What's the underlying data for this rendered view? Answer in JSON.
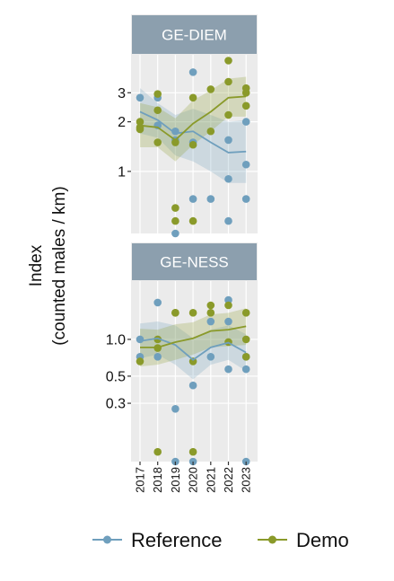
{
  "chart_data": {
    "type": "line",
    "ylabel_lines": [
      "Index",
      "(counted males / km)"
    ],
    "x": [
      "2017",
      "2018",
      "2019",
      "2020",
      "2021",
      "2022",
      "2023"
    ],
    "colors": {
      "Reference": "#6f9fbd",
      "Demo": "#8a9a2a",
      "panel_bg": "#ebebeb",
      "strip_bg": "#8c9fae"
    },
    "legend": {
      "position": "bottom",
      "entries": [
        "Reference",
        "Demo"
      ]
    },
    "panels": [
      {
        "title": "GE-DIEM",
        "yscale": "log",
        "ylim": [
          0.42,
          5.1
        ],
        "yticks": [
          1,
          2,
          3
        ],
        "ytick_labels": [
          "1",
          "2",
          "3"
        ],
        "series": [
          {
            "name": "Reference",
            "points": [
              {
                "x": "2017",
                "y": 2.8
              },
              {
                "x": "2018",
                "y": 2.8
              },
              {
                "x": "2018",
                "y": 1.9
              },
              {
                "x": "2019",
                "y": 1.75
              },
              {
                "x": "2019",
                "y": 1.55
              },
              {
                "x": "2019",
                "y": 0.42
              },
              {
                "x": "2020",
                "y": 4.0
              },
              {
                "x": "2020",
                "y": 1.5
              },
              {
                "x": "2020",
                "y": 0.68
              },
              {
                "x": "2021",
                "y": 0.68
              },
              {
                "x": "2022",
                "y": 1.55
              },
              {
                "x": "2022",
                "y": 0.9
              },
              {
                "x": "2022",
                "y": 0.5
              },
              {
                "x": "2023",
                "y": 2.0
              },
              {
                "x": "2023",
                "y": 1.1
              },
              {
                "x": "2023",
                "y": 0.68
              }
            ],
            "trend": [
              2.3,
              2.05,
              1.7,
              1.75,
              1.5,
              1.3,
              1.32
            ],
            "ci_low": [
              1.7,
              1.6,
              1.25,
              1.15,
              1.0,
              0.85,
              0.85
            ],
            "ci_high": [
              3.2,
              2.6,
              2.2,
              2.4,
              2.2,
              2.0,
              2.05
            ]
          },
          {
            "name": "Demo",
            "points": [
              {
                "x": "2017",
                "y": 2.0
              },
              {
                "x": "2017",
                "y": 1.85
              },
              {
                "x": "2017",
                "y": 1.8
              },
              {
                "x": "2018",
                "y": 2.95
              },
              {
                "x": "2018",
                "y": 2.35
              },
              {
                "x": "2018",
                "y": 1.5
              },
              {
                "x": "2019",
                "y": 0.6
              },
              {
                "x": "2019",
                "y": 0.5
              },
              {
                "x": "2019",
                "y": 1.5
              },
              {
                "x": "2020",
                "y": 2.8
              },
              {
                "x": "2020",
                "y": 1.45
              },
              {
                "x": "2020",
                "y": 0.5
              },
              {
                "x": "2021",
                "y": 3.15
              },
              {
                "x": "2021",
                "y": 1.75
              },
              {
                "x": "2022",
                "y": 4.7
              },
              {
                "x": "2022",
                "y": 3.5
              },
              {
                "x": "2022",
                "y": 2.2
              },
              {
                "x": "2023",
                "y": 3.2
              },
              {
                "x": "2023",
                "y": 3.0
              },
              {
                "x": "2023",
                "y": 2.5
              }
            ],
            "trend": [
              1.9,
              1.85,
              1.55,
              1.95,
              2.3,
              2.8,
              2.85
            ],
            "ci_low": [
              1.4,
              1.4,
              1.15,
              1.45,
              1.75,
              2.15,
              2.15
            ],
            "ci_high": [
              2.6,
              2.45,
              2.1,
              2.7,
              3.1,
              3.65,
              3.75
            ]
          }
        ]
      },
      {
        "title": "GE-NESS",
        "yscale": "log",
        "ylim": [
          0.1,
          3.0
        ],
        "yticks": [
          0.3,
          0.5,
          1.0
        ],
        "ytick_labels": [
          "0.3",
          "0.5",
          "1.0"
        ],
        "series": [
          {
            "name": "Reference",
            "points": [
              {
                "x": "2017",
                "y": 1.0
              },
              {
                "x": "2017",
                "y": 0.72
              },
              {
                "x": "2018",
                "y": 2.0
              },
              {
                "x": "2018",
                "y": 0.72
              },
              {
                "x": "2019",
                "y": 0.27
              },
              {
                "x": "2019",
                "y": 0.1
              },
              {
                "x": "2020",
                "y": 0.42
              },
              {
                "x": "2020",
                "y": 0.1
              },
              {
                "x": "2021",
                "y": 1.4
              },
              {
                "x": "2021",
                "y": 0.72
              },
              {
                "x": "2022",
                "y": 2.1
              },
              {
                "x": "2022",
                "y": 1.4
              },
              {
                "x": "2022",
                "y": 0.57
              },
              {
                "x": "2023",
                "y": 0.72
              },
              {
                "x": "2023",
                "y": 0.57
              },
              {
                "x": "2023",
                "y": 0.1
              }
            ],
            "trend": [
              0.97,
              1.02,
              0.9,
              0.68,
              0.86,
              0.94,
              0.78
            ],
            "ci_low": [
              0.7,
              0.75,
              0.62,
              0.47,
              0.62,
              0.68,
              0.55
            ],
            "ci_high": [
              1.35,
              1.4,
              1.3,
              1.02,
              1.2,
              1.3,
              1.1
            ]
          },
          {
            "name": "Demo",
            "points": [
              {
                "x": "2017",
                "y": 0.66
              },
              {
                "x": "2018",
                "y": 1.0
              },
              {
                "x": "2018",
                "y": 0.85
              },
              {
                "x": "2018",
                "y": 0.12
              },
              {
                "x": "2019",
                "y": 1.65
              },
              {
                "x": "2019",
                "y": 1.65
              },
              {
                "x": "2020",
                "y": 1.65
              },
              {
                "x": "2020",
                "y": 0.66
              },
              {
                "x": "2020",
                "y": 0.12
              },
              {
                "x": "2021",
                "y": 1.9
              },
              {
                "x": "2021",
                "y": 1.65
              },
              {
                "x": "2022",
                "y": 1.9
              },
              {
                "x": "2022",
                "y": 0.95
              },
              {
                "x": "2023",
                "y": 1.65
              },
              {
                "x": "2023",
                "y": 1.0
              },
              {
                "x": "2023",
                "y": 0.72
              }
            ],
            "trend": [
              0.86,
              0.86,
              0.95,
              1.02,
              1.17,
              1.2,
              1.28
            ],
            "ci_low": [
              0.6,
              0.62,
              0.68,
              0.75,
              0.86,
              0.88,
              0.9
            ],
            "ci_high": [
              1.22,
              1.2,
              1.33,
              1.38,
              1.6,
              1.65,
              1.8
            ]
          }
        ]
      }
    ]
  }
}
